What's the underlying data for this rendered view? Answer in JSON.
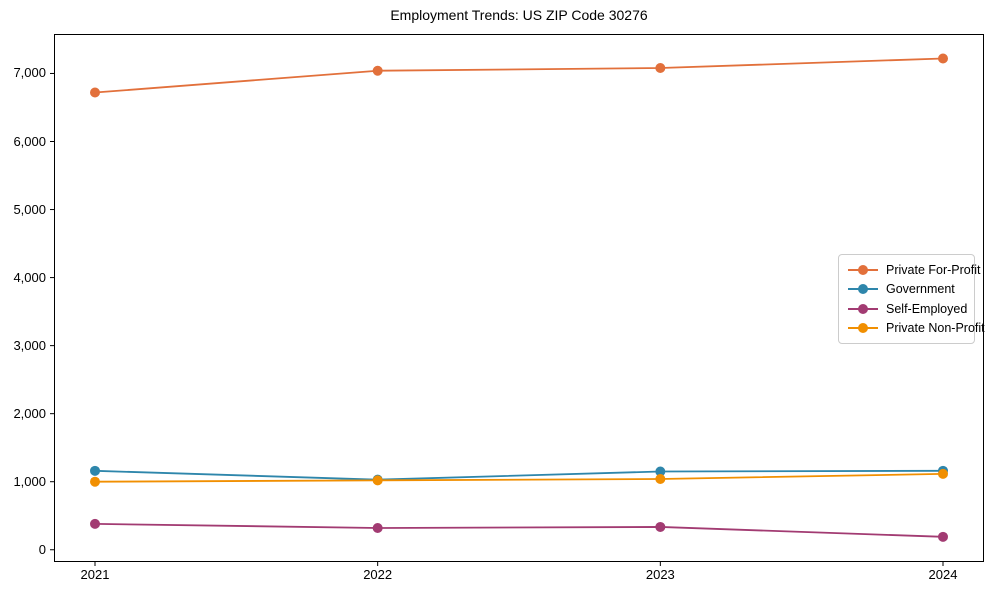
{
  "chart_data": {
    "type": "line",
    "title": "Employment Trends: US ZIP Code 30276",
    "categories": [
      "2021",
      "2022",
      "2023",
      "2024"
    ],
    "series": [
      {
        "name": "Private For-Profit",
        "color": "#E2703B",
        "values": [
          6720,
          7040,
          7080,
          7220
        ]
      },
      {
        "name": "Government",
        "color": "#2E86AB",
        "values": [
          1160,
          1030,
          1150,
          1160
        ]
      },
      {
        "name": "Self-Employed",
        "color": "#A23B72",
        "values": [
          380,
          320,
          335,
          190
        ]
      },
      {
        "name": "Private Non-Profit",
        "color": "#F18F01",
        "values": [
          1000,
          1020,
          1040,
          1115
        ]
      }
    ],
    "xlabel": "",
    "ylabel": "",
    "ylim": [
      -180,
      7580
    ],
    "y_ticks": [
      0,
      1000,
      2000,
      3000,
      4000,
      5000,
      6000,
      7000
    ],
    "y_tick_labels": [
      "0",
      "1,000",
      "2,000",
      "3,000",
      "4,000",
      "5,000",
      "6,000",
      "7,000"
    ],
    "grid": false,
    "legend_position": "center-right",
    "marker": "circle",
    "line_width": 1.8,
    "marker_radius": 5,
    "axis_color": "#000000",
    "background": "#ffffff"
  }
}
